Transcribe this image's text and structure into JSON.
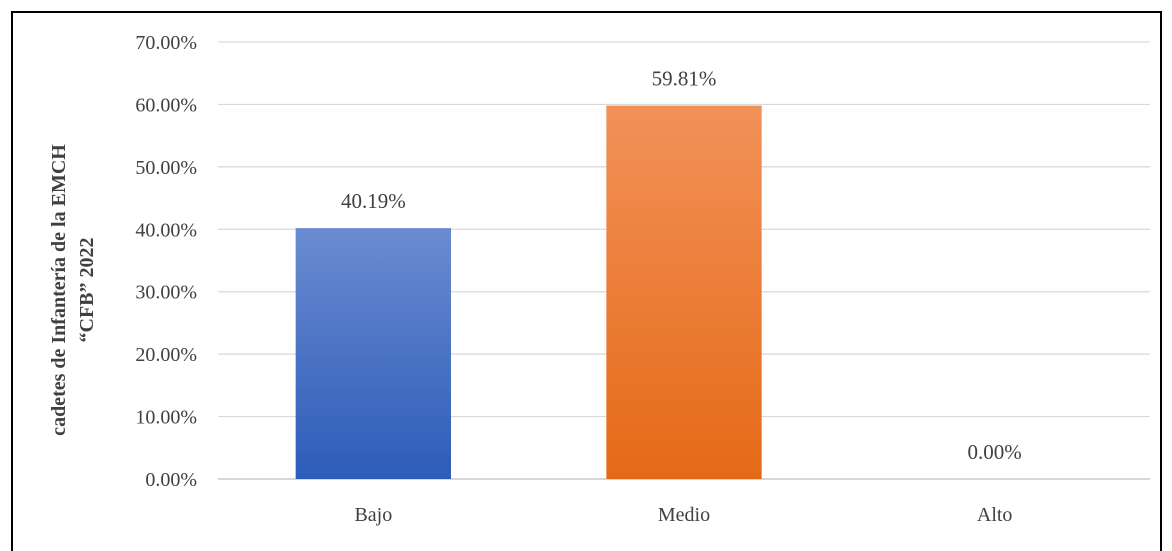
{
  "chart_data": {
    "type": "bar",
    "categories": [
      "Bajo",
      "Medio",
      "Alto"
    ],
    "values": [
      40.19,
      59.81,
      0.0
    ],
    "value_labels": [
      "40.19%",
      "59.81%",
      "0.00%"
    ],
    "bar_colors": [
      {
        "top": "#6a8bd0",
        "bottom": "#2c5cb9"
      },
      {
        "top": "#f29158",
        "bottom": "#e56a17"
      },
      {
        "top": "#e0e0e0",
        "bottom": "#e0e0e0"
      }
    ],
    "ylabel_lines": [
      "cadetes de Infantería de la EMCH",
      "“CFB” 2022"
    ],
    "ylim": [
      0,
      70
    ],
    "yticks": [
      0,
      10,
      20,
      30,
      40,
      50,
      60,
      70
    ],
    "ytick_labels": [
      "0.00%",
      "10.00%",
      "20.00%",
      "30.00%",
      "40.00%",
      "50.00%",
      "60.00%",
      "70.00%"
    ],
    "grid": true,
    "legend": false,
    "grid_color": "#d9d9d9",
    "axis_color": "#bfbfbf"
  }
}
